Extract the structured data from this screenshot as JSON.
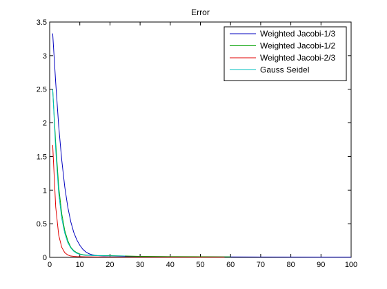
{
  "chart_data": {
    "type": "line",
    "title": "Error",
    "xlabel": "",
    "ylabel": "",
    "xlim": [
      0,
      100
    ],
    "ylim": [
      0,
      3.5
    ],
    "xticks": [
      0,
      10,
      20,
      30,
      40,
      50,
      60,
      70,
      80,
      90,
      100
    ],
    "yticks": [
      0,
      0.5,
      1,
      1.5,
      2,
      2.5,
      3,
      3.5
    ],
    "grid": false,
    "legend_position": "top-right",
    "series": [
      {
        "name": "Weighted Jacobi-1/3",
        "color": "#0000bf",
        "x": [
          1,
          2,
          3,
          4,
          5,
          6,
          7,
          8,
          9,
          10,
          11,
          12,
          13,
          14,
          15,
          16,
          18,
          20,
          25,
          30,
          40,
          50,
          60,
          70,
          80,
          90,
          100
        ],
        "y": [
          3.33,
          2.6,
          1.95,
          1.45,
          1.05,
          0.75,
          0.53,
          0.37,
          0.26,
          0.18,
          0.12,
          0.08,
          0.055,
          0.04,
          0.03,
          0.025,
          0.02,
          0.02,
          0.015,
          0.012,
          0.01,
          0.008,
          0.006,
          0.005,
          0.004,
          0.003,
          0.002
        ]
      },
      {
        "name": "Weighted Jacobi-1/2",
        "color": "#00a000",
        "x": [
          1,
          2,
          3,
          4,
          5,
          6,
          7,
          8,
          9,
          10,
          11,
          12,
          14,
          16,
          20,
          25,
          30,
          40,
          50,
          60
        ],
        "y": [
          2.5,
          1.7,
          1.05,
          0.65,
          0.4,
          0.25,
          0.15,
          0.1,
          0.07,
          0.05,
          0.04,
          0.035,
          0.03,
          0.027,
          0.025,
          0.02,
          0.016,
          0.012,
          0.01,
          0.008
        ]
      },
      {
        "name": "Weighted Jacobi-2/3",
        "color": "#e00000",
        "x": [
          1,
          2,
          3,
          4,
          5,
          6,
          7,
          8,
          9,
          10,
          12,
          15,
          20,
          30,
          40,
          50,
          58
        ],
        "y": [
          1.67,
          0.75,
          0.33,
          0.15,
          0.07,
          0.035,
          0.02,
          0.015,
          0.012,
          0.01,
          0.008,
          0.006,
          0.005,
          0.004,
          0.003,
          0.002,
          0.002
        ]
      },
      {
        "name": "Gauss Seidel",
        "color": "#00bfbf",
        "x": [
          1,
          2,
          3,
          4,
          5,
          6,
          7,
          8,
          9,
          10,
          11,
          12,
          14,
          16,
          20,
          25
        ],
        "y": [
          2.5,
          1.6,
          0.95,
          0.58,
          0.36,
          0.22,
          0.14,
          0.09,
          0.06,
          0.045,
          0.035,
          0.03,
          0.028,
          0.025,
          0.022,
          0.02
        ]
      }
    ]
  }
}
